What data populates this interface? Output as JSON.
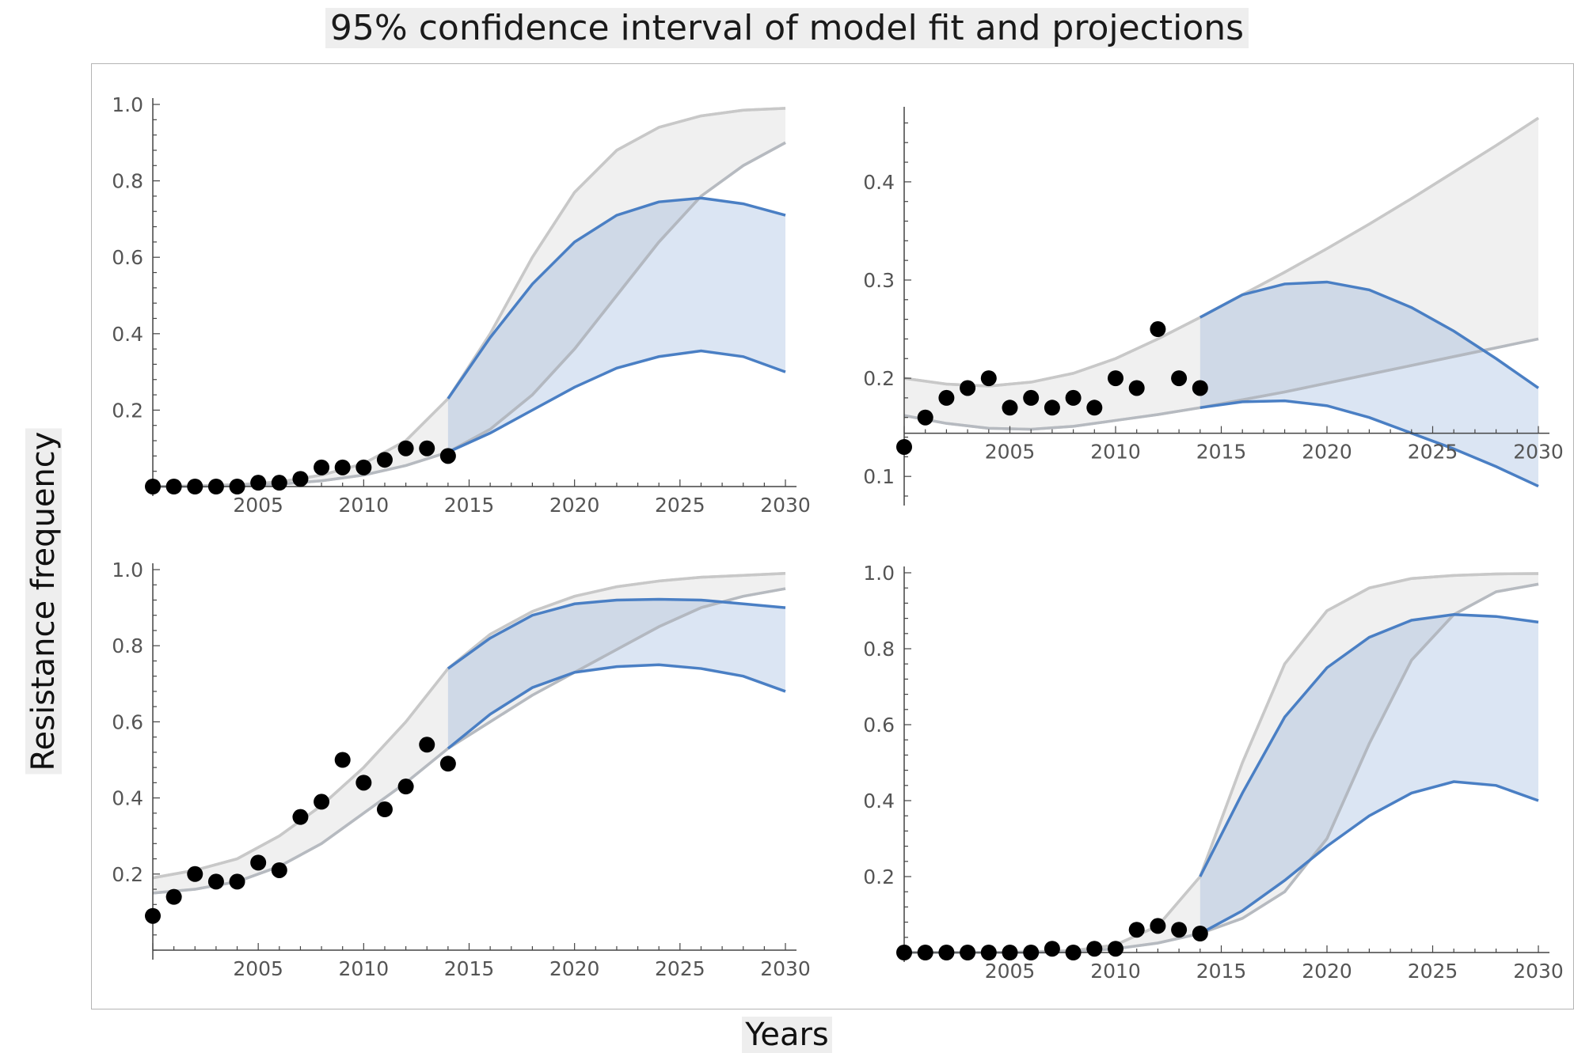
{
  "title": "95% confidence interval of model fit and projections",
  "xlabel": "Years",
  "ylabel": "Resistance frequency",
  "colors": {
    "points": "#000000",
    "fit_band_fill": "#f0f0f0",
    "fit_band_line": "#c8c8c8",
    "projection_fill": "#dae3f1",
    "projection_line": "#4a7fc4",
    "axis": "#444444",
    "tick_text": "#555555"
  },
  "chart_data": [
    {
      "type": "scatter",
      "title": "",
      "xlabel": "",
      "ylabel": "",
      "xlim": [
        2000,
        2030
      ],
      "ylim": [
        0,
        1.0
      ],
      "x_ticks": [
        2005,
        2010,
        2015,
        2020,
        2025,
        2030
      ],
      "y_ticks": [
        0.2,
        0.4,
        0.6,
        0.8,
        1.0
      ],
      "x_axis_at": 0,
      "points": {
        "x": [
          2000,
          2001,
          2002,
          2003,
          2004,
          2005,
          2006,
          2007,
          2008,
          2009,
          2010,
          2011,
          2012,
          2013,
          2014
        ],
        "y": [
          0.0,
          0.0,
          0.0,
          0.0,
          0.0,
          0.01,
          0.01,
          0.02,
          0.05,
          0.05,
          0.05,
          0.07,
          0.1,
          0.1,
          0.08
        ]
      },
      "fit_band": {
        "x": [
          2000,
          2002,
          2004,
          2006,
          2008,
          2010,
          2012,
          2014,
          2016,
          2018,
          2020,
          2022,
          2024,
          2026,
          2028,
          2030
        ],
        "upper": [
          0.0,
          0.002,
          0.005,
          0.012,
          0.03,
          0.06,
          0.12,
          0.23,
          0.4,
          0.6,
          0.77,
          0.88,
          0.94,
          0.97,
          0.985,
          0.99
        ],
        "lower": [
          0.0,
          0.0,
          0.002,
          0.006,
          0.015,
          0.03,
          0.055,
          0.09,
          0.15,
          0.24,
          0.36,
          0.5,
          0.64,
          0.76,
          0.84,
          0.9
        ]
      },
      "projection_band": {
        "x": [
          2014,
          2016,
          2018,
          2020,
          2022,
          2024,
          2026,
          2028,
          2030
        ],
        "upper": [
          0.23,
          0.39,
          0.53,
          0.64,
          0.71,
          0.745,
          0.755,
          0.74,
          0.71
        ],
        "lower": [
          0.09,
          0.14,
          0.2,
          0.26,
          0.31,
          0.34,
          0.355,
          0.34,
          0.3
        ]
      }
    },
    {
      "type": "scatter",
      "title": "",
      "xlabel": "",
      "ylabel": "",
      "xlim": [
        2000,
        2030
      ],
      "ylim": [
        0.08,
        0.47
      ],
      "x_ticks": [
        2005,
        2010,
        2015,
        2020,
        2025,
        2030
      ],
      "y_ticks": [
        0.1,
        0.2,
        0.3,
        0.4
      ],
      "x_axis_at": 0.144,
      "points": {
        "x": [
          2000,
          2001,
          2002,
          2003,
          2004,
          2005,
          2006,
          2007,
          2008,
          2009,
          2010,
          2011,
          2012,
          2013,
          2014
        ],
        "y": [
          0.13,
          0.16,
          0.18,
          0.19,
          0.2,
          0.17,
          0.18,
          0.17,
          0.18,
          0.17,
          0.2,
          0.19,
          0.25,
          0.2,
          0.19
        ]
      },
      "fit_band": {
        "x": [
          2000,
          2002,
          2004,
          2006,
          2008,
          2010,
          2012,
          2014,
          2016,
          2018,
          2020,
          2022,
          2024,
          2026,
          2028,
          2030
        ],
        "upper": [
          0.2,
          0.194,
          0.192,
          0.196,
          0.205,
          0.22,
          0.24,
          0.262,
          0.285,
          0.308,
          0.332,
          0.357,
          0.383,
          0.41,
          0.437,
          0.465
        ],
        "lower": [
          0.162,
          0.154,
          0.149,
          0.148,
          0.151,
          0.157,
          0.163,
          0.17,
          0.178,
          0.186,
          0.195,
          0.204,
          0.213,
          0.222,
          0.231,
          0.24
        ]
      },
      "projection_band": {
        "x": [
          2014,
          2016,
          2018,
          2020,
          2022,
          2024,
          2026,
          2028,
          2030
        ],
        "upper": [
          0.262,
          0.285,
          0.296,
          0.298,
          0.29,
          0.272,
          0.248,
          0.22,
          0.19
        ],
        "lower": [
          0.17,
          0.176,
          0.177,
          0.172,
          0.16,
          0.144,
          0.128,
          0.11,
          0.09
        ]
      }
    },
    {
      "type": "scatter",
      "title": "",
      "xlabel": "",
      "ylabel": "",
      "xlim": [
        2000,
        2030
      ],
      "ylim": [
        0,
        1.0
      ],
      "x_ticks": [
        2005,
        2010,
        2015,
        2020,
        2025,
        2030
      ],
      "y_ticks": [
        0.2,
        0.4,
        0.6,
        0.8,
        1.0
      ],
      "x_axis_at": 0,
      "points": {
        "x": [
          2000,
          2001,
          2002,
          2003,
          2004,
          2005,
          2006,
          2007,
          2008,
          2009,
          2010,
          2011,
          2012,
          2013,
          2014
        ],
        "y": [
          0.09,
          0.14,
          0.2,
          0.18,
          0.18,
          0.23,
          0.21,
          0.35,
          0.39,
          0.5,
          0.44,
          0.37,
          0.43,
          0.54,
          0.49
        ]
      },
      "fit_band": {
        "x": [
          2000,
          2002,
          2004,
          2006,
          2008,
          2010,
          2012,
          2014,
          2016,
          2018,
          2020,
          2022,
          2024,
          2026,
          2028,
          2030
        ],
        "upper": [
          0.19,
          0.21,
          0.24,
          0.3,
          0.38,
          0.48,
          0.6,
          0.74,
          0.83,
          0.89,
          0.93,
          0.955,
          0.97,
          0.98,
          0.985,
          0.99
        ],
        "lower": [
          0.15,
          0.16,
          0.18,
          0.22,
          0.28,
          0.36,
          0.44,
          0.53,
          0.6,
          0.67,
          0.73,
          0.79,
          0.85,
          0.9,
          0.93,
          0.95
        ]
      },
      "projection_band": {
        "x": [
          2014,
          2016,
          2018,
          2020,
          2022,
          2024,
          2026,
          2028,
          2030
        ],
        "upper": [
          0.74,
          0.82,
          0.88,
          0.91,
          0.92,
          0.922,
          0.92,
          0.91,
          0.9
        ],
        "lower": [
          0.53,
          0.62,
          0.69,
          0.73,
          0.745,
          0.75,
          0.74,
          0.72,
          0.68
        ]
      }
    },
    {
      "type": "scatter",
      "title": "",
      "xlabel": "",
      "ylabel": "",
      "xlim": [
        2000,
        2030
      ],
      "ylim": [
        0,
        1.0
      ],
      "x_ticks": [
        2005,
        2010,
        2015,
        2020,
        2025,
        2030
      ],
      "y_ticks": [
        0.2,
        0.4,
        0.6,
        0.8,
        1.0
      ],
      "x_axis_at": 0,
      "points": {
        "x": [
          2000,
          2001,
          2002,
          2003,
          2004,
          2005,
          2006,
          2007,
          2008,
          2009,
          2010,
          2011,
          2012,
          2013,
          2014
        ],
        "y": [
          0.0,
          0.0,
          0.0,
          0.0,
          0.0,
          0.0,
          0.0,
          0.01,
          0.0,
          0.01,
          0.01,
          0.06,
          0.07,
          0.06,
          0.05
        ]
      },
      "fit_band": {
        "x": [
          2000,
          2002,
          2004,
          2006,
          2008,
          2010,
          2012,
          2014,
          2016,
          2018,
          2020,
          2022,
          2024,
          2026,
          2028,
          2030
        ],
        "upper": [
          0.0,
          0.0,
          0.0,
          0.002,
          0.005,
          0.02,
          0.07,
          0.2,
          0.5,
          0.76,
          0.9,
          0.96,
          0.985,
          0.993,
          0.997,
          0.998
        ],
        "lower": [
          0.0,
          0.0,
          0.0,
          0.0,
          0.002,
          0.01,
          0.025,
          0.05,
          0.09,
          0.16,
          0.3,
          0.55,
          0.77,
          0.89,
          0.95,
          0.97
        ]
      },
      "projection_band": {
        "x": [
          2014,
          2016,
          2018,
          2020,
          2022,
          2024,
          2026,
          2028,
          2030
        ],
        "upper": [
          0.2,
          0.42,
          0.62,
          0.75,
          0.83,
          0.875,
          0.89,
          0.885,
          0.87
        ],
        "lower": [
          0.05,
          0.11,
          0.19,
          0.28,
          0.36,
          0.42,
          0.45,
          0.44,
          0.4
        ]
      }
    }
  ]
}
